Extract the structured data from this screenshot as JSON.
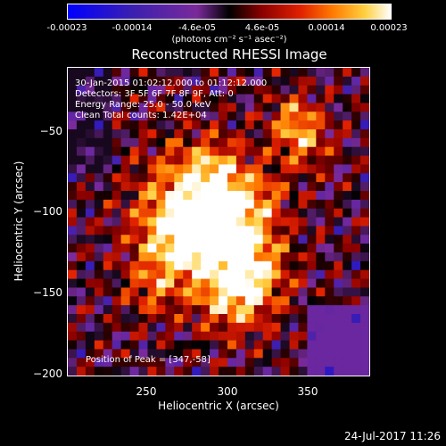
{
  "colorbar": {
    "ticks": [
      "-0.00023",
      "-0.00014",
      "-4.6e-05",
      "4.6e-05",
      "0.00014",
      "0.00023"
    ],
    "tick_values": [
      -0.00023,
      -0.00014,
      -4.6e-05,
      4.6e-05,
      0.00014,
      0.00023
    ],
    "range": [
      -0.00023,
      0.00023
    ],
    "unit": "(photons cm⁻² s⁻¹ asec⁻²)",
    "colors": [
      "#0000ff",
      "#3b1fb0",
      "#7a2a9a",
      "#000000",
      "#8a0000",
      "#e02000",
      "#ff7a00",
      "#ffd040",
      "#ffffff"
    ]
  },
  "chart_data": {
    "type": "heatmap",
    "title": "Reconstructed RHESSI Image",
    "xlabel": "Heliocentric X (arcsec)",
    "ylabel": "Heliocentric Y (arcsec)",
    "xlim": [
      205,
      393
    ],
    "ylim": [
      -203,
      -12
    ],
    "xticks": [
      250,
      300,
      350
    ],
    "xtick_labels": [
      "250",
      "300",
      "350"
    ],
    "yticks": [
      -50,
      -100,
      -150,
      -200
    ],
    "ytick_labels": [
      "−50",
      "−100",
      "−150",
      "−200"
    ],
    "peak": [
      347,
      -58
    ],
    "annotations": {
      "time": "30-Jan-2015 01:02:12.000 to 01:12:12.000",
      "detectors": "Detectors: 3F 5F 6F 7F 8F 9F, Att: 0",
      "energy": "Energy Range: 25.0 - 50.0 keV",
      "method": "Clean    Total counts: 1.42E+04",
      "peak_label": "Position of Peak = [347,-58]"
    }
  },
  "footer": {
    "timestamp": "24-Jul-2017 11:26"
  }
}
